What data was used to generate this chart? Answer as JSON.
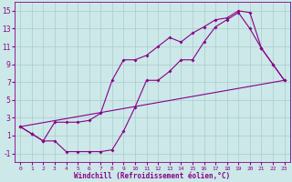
{
  "xlabel": "Windchill (Refroidissement éolien,°C)",
  "bg_color": "#cce8e8",
  "grid_color": "#aacccc",
  "line_color": "#880088",
  "xlim": [
    -0.5,
    23.5
  ],
  "ylim": [
    -2.0,
    16.0
  ],
  "xticks": [
    0,
    1,
    2,
    3,
    4,
    5,
    6,
    7,
    8,
    9,
    10,
    11,
    12,
    13,
    14,
    15,
    16,
    17,
    18,
    19,
    20,
    21,
    22,
    23
  ],
  "yticks": [
    -1,
    1,
    3,
    5,
    7,
    9,
    11,
    13,
    15
  ],
  "line1_x": [
    0,
    1,
    2,
    3,
    4,
    5,
    6,
    7,
    8,
    9,
    10,
    11,
    12,
    13,
    14,
    15,
    16,
    17,
    18,
    19,
    20,
    21,
    22,
    23
  ],
  "line1_y": [
    2.0,
    1.2,
    0.4,
    0.4,
    -0.8,
    -0.8,
    -0.8,
    -0.8,
    -0.6,
    1.5,
    4.2,
    7.2,
    7.2,
    8.2,
    9.5,
    9.5,
    11.5,
    13.2,
    14.0,
    14.8,
    13.0,
    10.8,
    9.0,
    7.2
  ],
  "line2_x": [
    0,
    1,
    2,
    3,
    4,
    5,
    6,
    7,
    8,
    9,
    10,
    11,
    12,
    13,
    14,
    15,
    16,
    17,
    18,
    19,
    20,
    21,
    22,
    23
  ],
  "line2_y": [
    2.0,
    1.2,
    0.4,
    2.5,
    2.5,
    2.5,
    2.7,
    3.5,
    7.2,
    9.5,
    9.5,
    10.0,
    11.0,
    12.0,
    11.5,
    12.5,
    13.2,
    14.0,
    14.2,
    15.0,
    14.8,
    10.8,
    9.0,
    7.2
  ],
  "line3_x": [
    0,
    23
  ],
  "line3_y": [
    2.0,
    7.2
  ],
  "xlabel_fontsize": 5.5,
  "tick_fontsize_x": 4.5,
  "tick_fontsize_y": 5.5
}
